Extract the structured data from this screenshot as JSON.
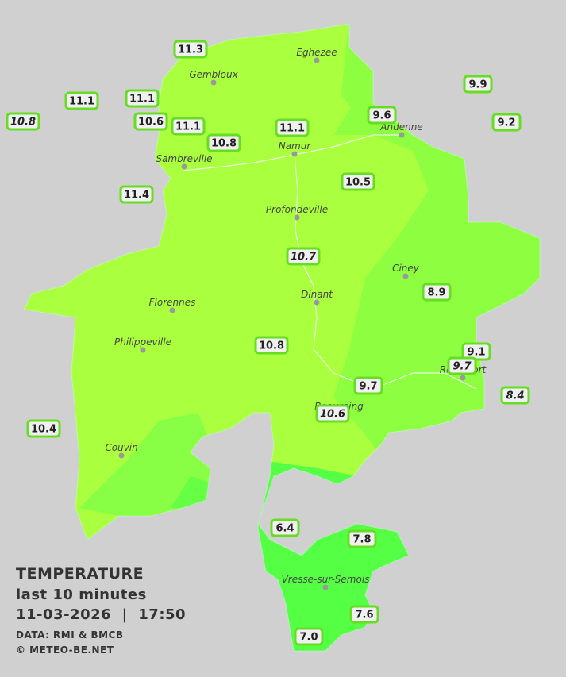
{
  "legend": {
    "title": "TEMPERATURE",
    "period": "last 10 minutes",
    "datetime": "11-03-2026  |  17:50",
    "source": "DATA: RMI & BMCB",
    "copyright": "© METEO-BE.NET"
  },
  "cities": [
    "Eghezee",
    "Gembloux",
    "Andenne",
    "Namur",
    "Sambreville",
    "Profondeville",
    "Ciney",
    "Dinant",
    "Florennes",
    "Philippeville",
    "Rochefort",
    "Beauraing",
    "Couvin",
    "Vresse-sur-Semois"
  ],
  "stations": [
    {
      "label": "11.3",
      "italic": false
    },
    {
      "label": "11.1",
      "italic": false
    },
    {
      "label": "11.1",
      "italic": false
    },
    {
      "label": "10.8",
      "italic": true
    },
    {
      "label": "10.6",
      "italic": false
    },
    {
      "label": "11.1",
      "italic": false
    },
    {
      "label": "10.8",
      "italic": false
    },
    {
      "label": "11.1",
      "italic": false
    },
    {
      "label": "9.6",
      "italic": false
    },
    {
      "label": "9.9",
      "italic": false
    },
    {
      "label": "9.2",
      "italic": false
    },
    {
      "label": "11.4",
      "italic": false
    },
    {
      "label": "10.5",
      "italic": false
    },
    {
      "label": "10.7",
      "italic": true
    },
    {
      "label": "8.9",
      "italic": false
    },
    {
      "label": "10.8",
      "italic": false
    },
    {
      "label": "9.1",
      "italic": false
    },
    {
      "label": "9.7",
      "italic": true
    },
    {
      "label": "9.7",
      "italic": false
    },
    {
      "label": "10.6",
      "italic": true
    },
    {
      "label": "8.4",
      "italic": true
    },
    {
      "label": "10.4",
      "italic": false
    },
    {
      "label": "6.4",
      "italic": false
    },
    {
      "label": "7.8",
      "italic": false
    },
    {
      "label": "7.6",
      "italic": false
    },
    {
      "label": "7.0",
      "italic": false
    }
  ]
}
